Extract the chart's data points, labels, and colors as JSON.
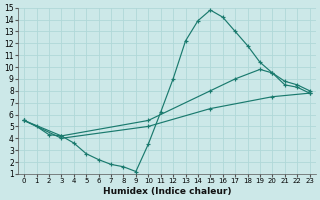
{
  "xlabel": "Humidex (Indice chaleur)",
  "bg_color": "#cce8e8",
  "grid_color": "#b0d8d8",
  "line_color": "#1a7a6e",
  "xlim": [
    -0.5,
    23.5
  ],
  "ylim": [
    1,
    15
  ],
  "xticks": [
    0,
    1,
    2,
    3,
    4,
    5,
    6,
    7,
    8,
    9,
    10,
    11,
    12,
    13,
    14,
    15,
    16,
    17,
    18,
    19,
    20,
    21,
    22,
    23
  ],
  "yticks": [
    1,
    2,
    3,
    4,
    5,
    6,
    7,
    8,
    9,
    10,
    11,
    12,
    13,
    14,
    15
  ],
  "lines": [
    {
      "x": [
        0,
        1,
        2,
        3,
        4,
        5,
        6,
        7,
        8,
        9,
        10,
        11,
        12,
        13,
        14,
        15,
        16,
        17,
        18,
        19,
        20,
        21,
        22,
        23
      ],
      "y": [
        5.5,
        5.0,
        4.3,
        4.2,
        3.6,
        2.7,
        2.2,
        1.8,
        1.6,
        1.2,
        3.5,
        6.2,
        9.0,
        12.2,
        13.9,
        14.8,
        14.2,
        13.0,
        11.8,
        10.4,
        9.5,
        8.5,
        8.3,
        7.8
      ]
    },
    {
      "x": [
        0,
        3,
        10,
        15,
        17,
        19,
        20,
        21,
        22,
        23
      ],
      "y": [
        5.5,
        4.2,
        5.5,
        8.0,
        9.0,
        9.8,
        9.5,
        8.8,
        8.5,
        8.0
      ]
    },
    {
      "x": [
        0,
        3,
        10,
        15,
        20,
        23
      ],
      "y": [
        5.5,
        4.0,
        5.0,
        6.5,
        7.5,
        7.8
      ]
    }
  ]
}
